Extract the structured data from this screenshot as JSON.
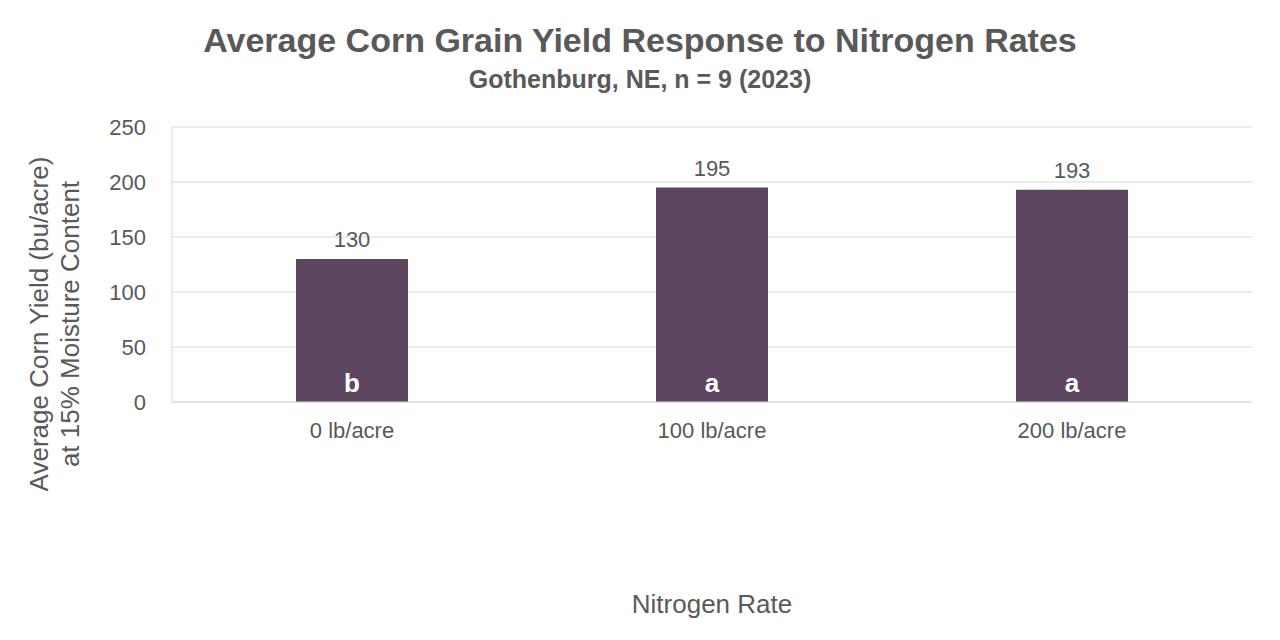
{
  "chart_data": {
    "type": "bar",
    "title": "Average Corn Grain Yield Response to Nitrogen Rates",
    "subtitle": "Gothenburg, NE, n = 9 (2023)",
    "xlabel": "Nitrogen Rate",
    "ylabel": [
      "Average Corn Yield (bu/acre)",
      "at 15% Moisture Content"
    ],
    "categories": [
      "0 lb/acre",
      "100 lb/acre",
      "200 lb/acre"
    ],
    "values": [
      130,
      195,
      193
    ],
    "annotations": [
      "b",
      "a",
      "a"
    ],
    "color": "#5c4660",
    "ylim": [
      0,
      250
    ],
    "yticks": [
      0,
      50,
      100,
      150,
      200,
      250
    ],
    "grid": true,
    "data_labels": true
  }
}
